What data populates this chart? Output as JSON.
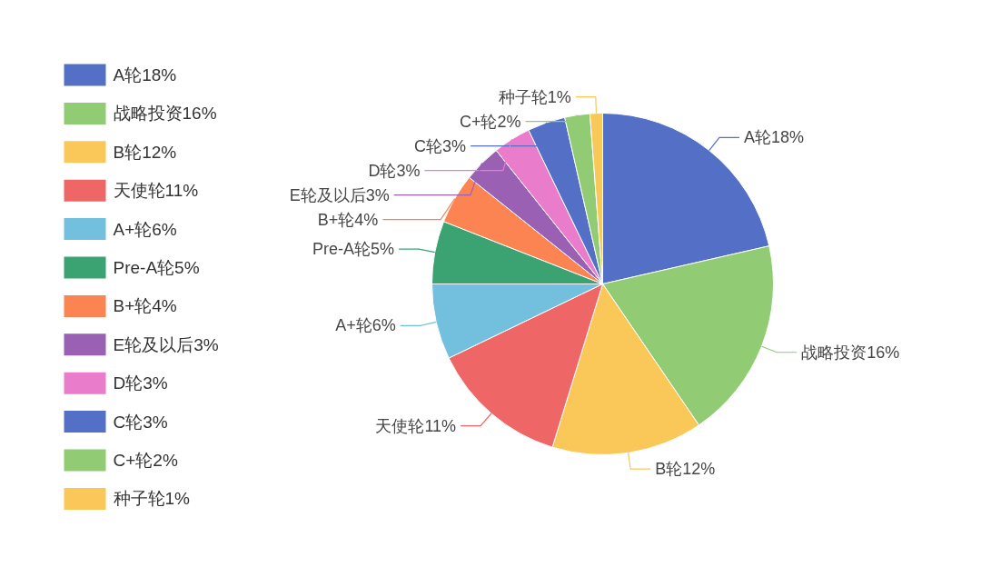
{
  "chart_data": {
    "type": "pie",
    "legend": "left",
    "categories": [
      "A轮18%",
      "战略投资16%",
      "B轮12%",
      "天使轮11%",
      "A+轮6%",
      "Pre-A轮5%",
      "B+轮4%",
      "E轮及以后3%",
      "D轮3%",
      "C轮3%",
      "C+轮2%",
      "种子轮1%"
    ],
    "values": [
      18,
      16,
      12,
      11,
      6,
      5,
      4,
      3,
      3,
      3,
      2,
      1
    ],
    "colors": [
      "#5470c6",
      "#91cc75",
      "#fac858",
      "#ee6666",
      "#73c0de",
      "#3ba272",
      "#fc8452",
      "#9a60b4",
      "#ea7ccc",
      "#5470c6",
      "#91cc75",
      "#fac858"
    ]
  }
}
